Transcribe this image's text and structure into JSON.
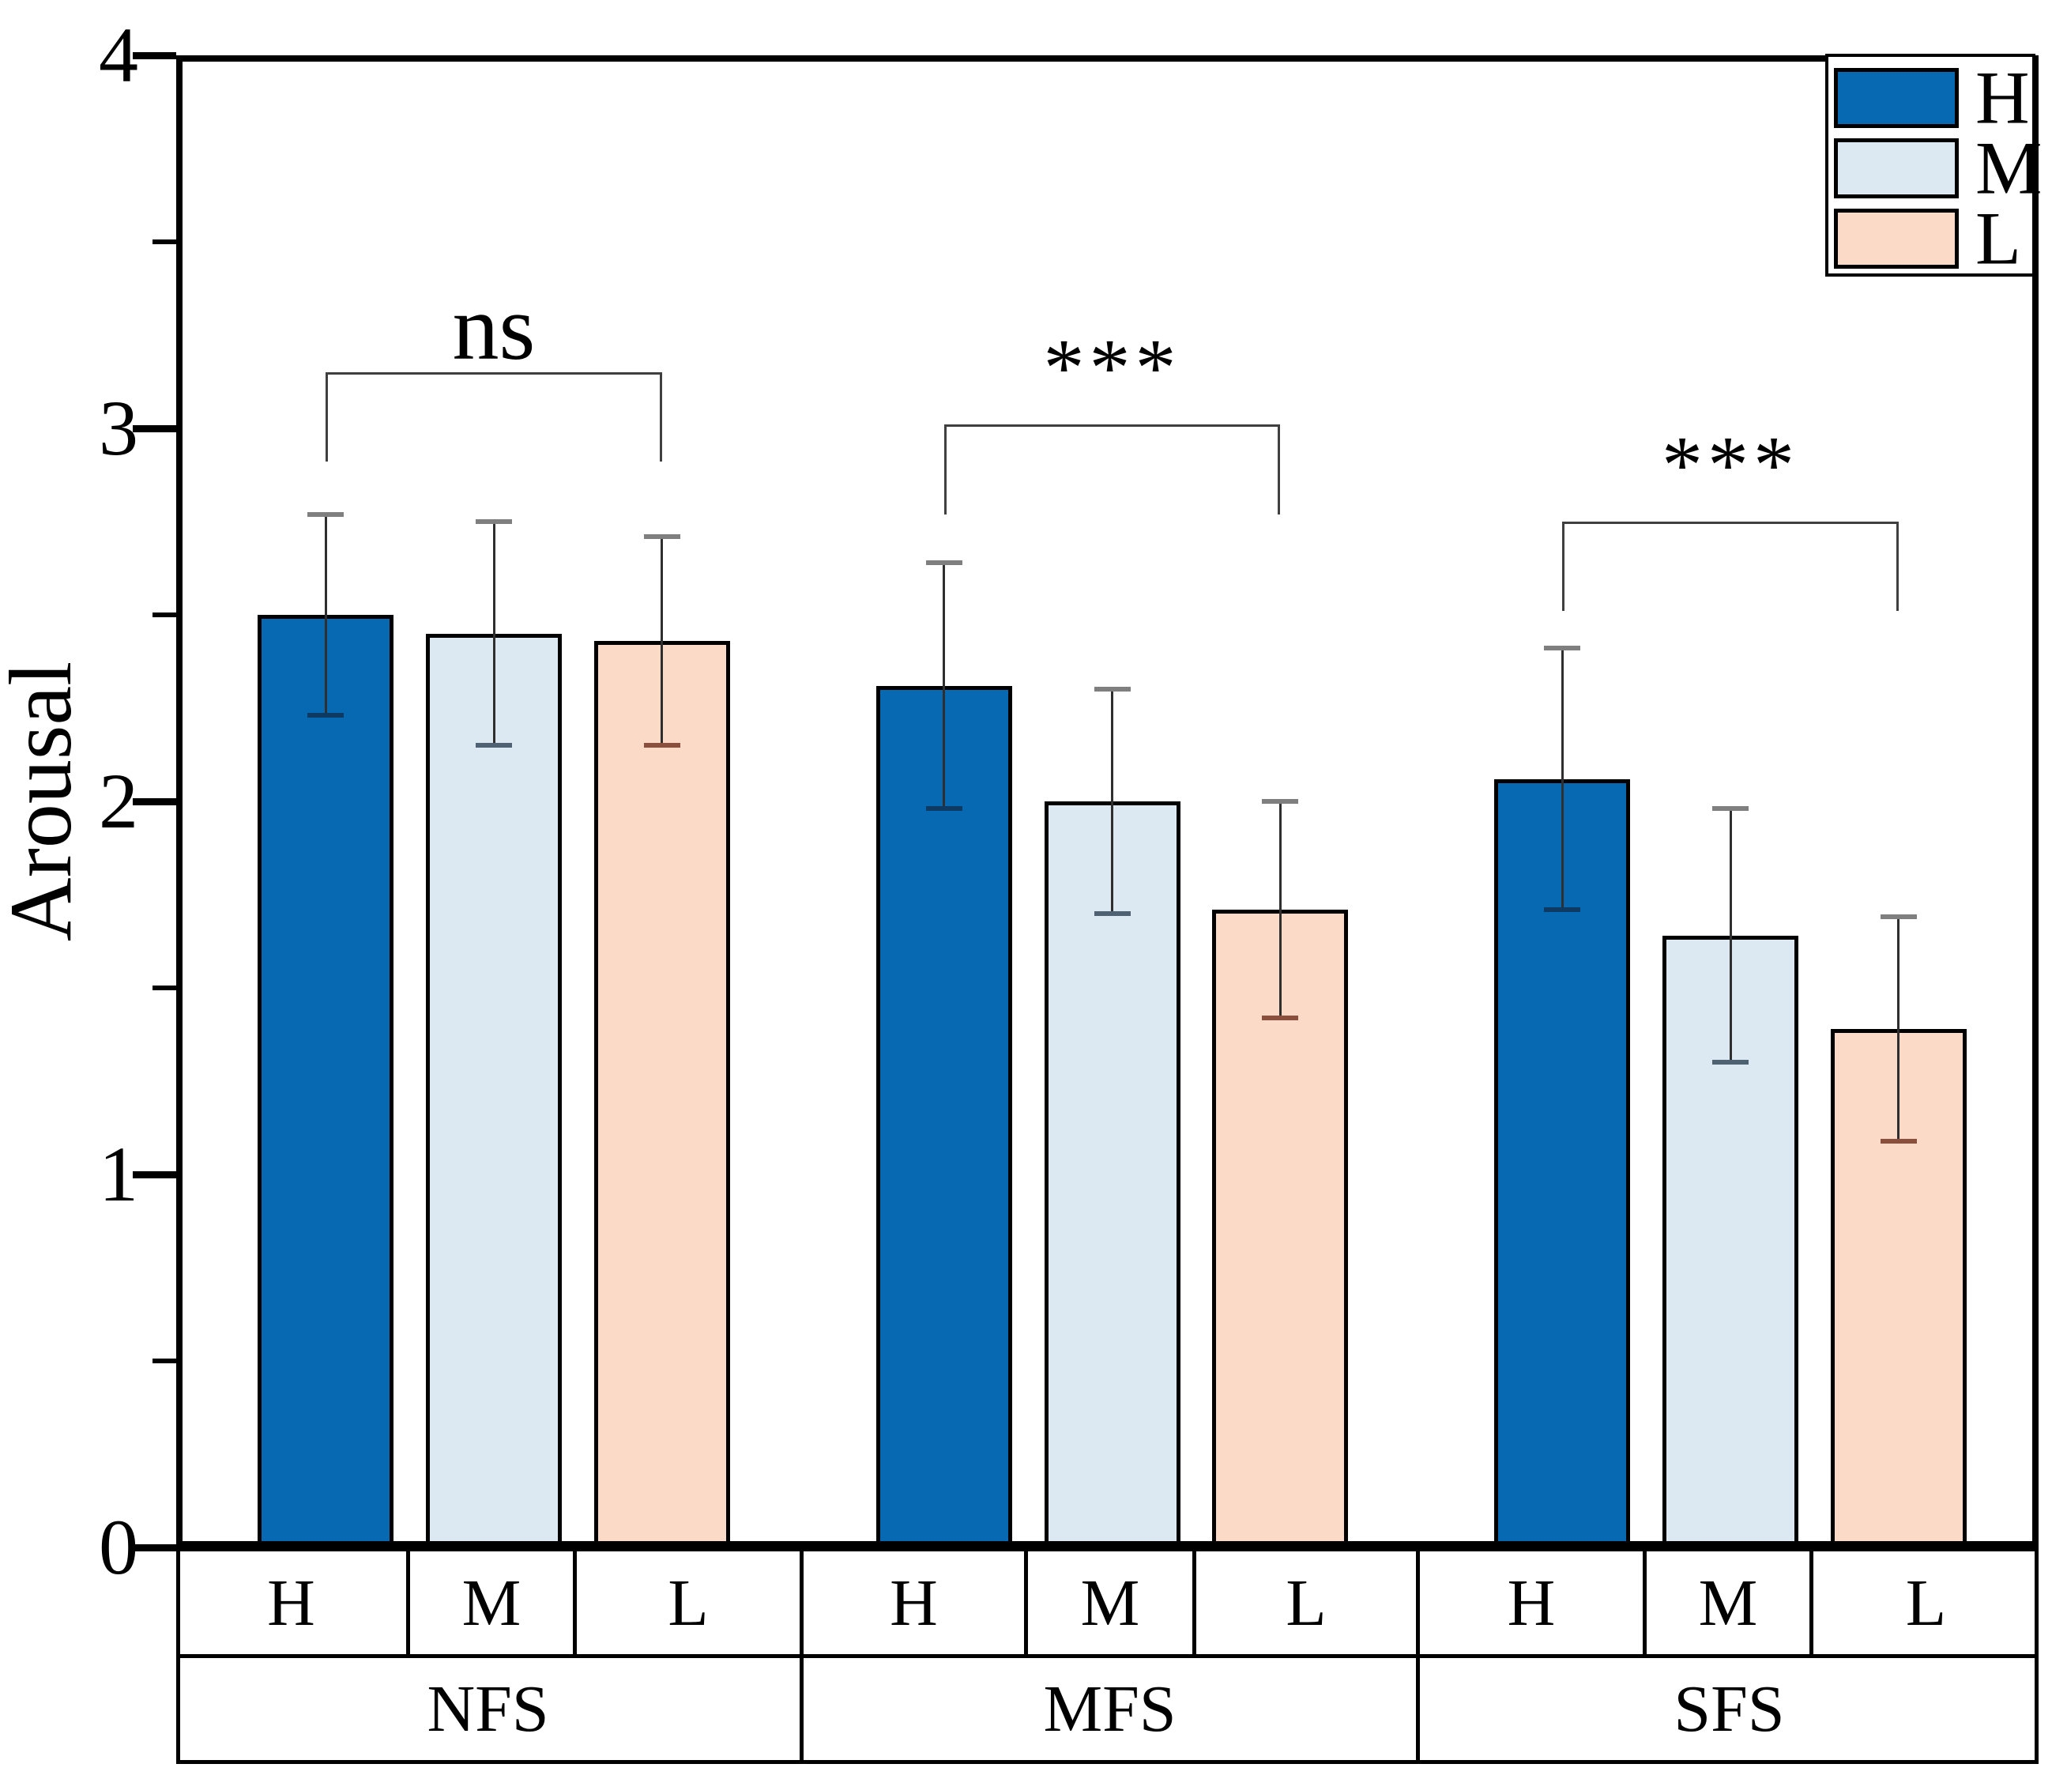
{
  "chart_data": {
    "type": "bar",
    "title": "",
    "xlabel": "",
    "ylabel": "Arousal",
    "ylim": [
      0,
      4
    ],
    "y_major_ticks": [
      0,
      1,
      2,
      3,
      4
    ],
    "y_minor_ticks": [
      0.5,
      1.5,
      2.5,
      3.5
    ],
    "grid": false,
    "legend_position": "top-right",
    "legend_entries": [
      "H",
      "M",
      "L"
    ],
    "categories": [
      "NFS",
      "MFS",
      "SFS"
    ],
    "sub_categories": [
      "H",
      "M",
      "L"
    ],
    "series": [
      {
        "name": "H",
        "color": "#0769b2",
        "cap_bottom_color": "#0d3a63",
        "values": [
          2.5,
          2.31,
          2.06
        ],
        "errors": [
          0.27,
          0.33,
          0.35
        ]
      },
      {
        "name": "M",
        "color": "#dce9f3",
        "cap_bottom_color": "#4f6273",
        "values": [
          2.45,
          2.0,
          1.64
        ],
        "errors": [
          0.3,
          0.3,
          0.34
        ]
      },
      {
        "name": "L",
        "color": "#fbdbc8",
        "cap_bottom_color": "#8a4f3d",
        "values": [
          2.43,
          1.71,
          1.39
        ],
        "errors": [
          0.28,
          0.29,
          0.3
        ]
      }
    ],
    "error_line_color": "#2f2f2f",
    "error_cap_top_color": "#7f7f7f",
    "significance": [
      {
        "group": "NFS",
        "label": "ns",
        "from": "H",
        "to": "L",
        "bar_y": 3.15,
        "drop_to": 2.91,
        "label_y": 3.27
      },
      {
        "group": "MFS",
        "label": "***",
        "from": "H",
        "to": "L",
        "bar_y": 3.01,
        "drop_to": 2.77,
        "label_y": 3.16
      },
      {
        "group": "SFS",
        "label": "***",
        "from": "H",
        "to": "L",
        "bar_y": 2.75,
        "drop_to": 2.51,
        "label_y": 2.9
      }
    ],
    "x_table": {
      "row1": [
        "H",
        "M",
        "L",
        "H",
        "M",
        "L",
        "H",
        "M",
        "L"
      ],
      "row2": [
        "NFS",
        "MFS",
        "SFS"
      ]
    }
  }
}
